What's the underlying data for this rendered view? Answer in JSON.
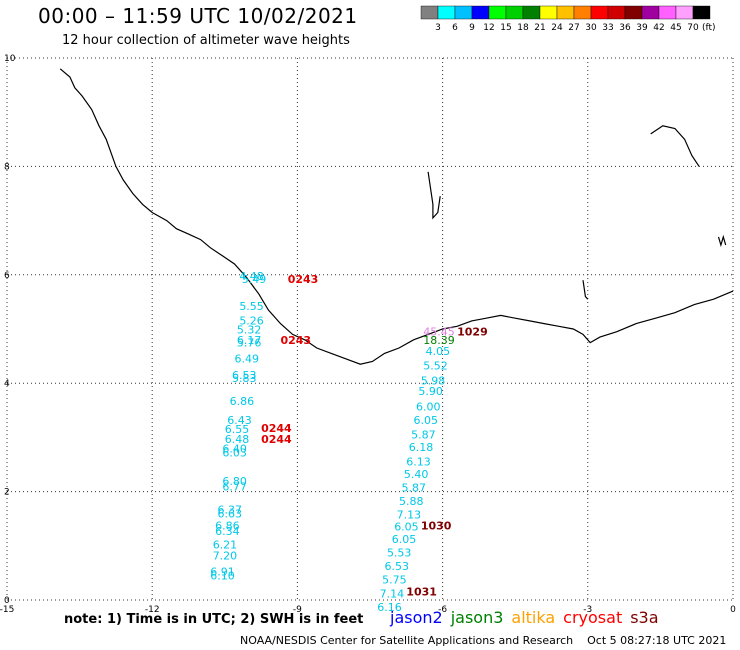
{
  "header": {
    "title": "00:00 – 11:59 UTC 10/02/2021",
    "subtitle": "12 hour collection of altimeter wave heights"
  },
  "color_scale": {
    "labels": [
      "3",
      "6",
      "9",
      "12",
      "15",
      "18",
      "21",
      "24",
      "27",
      "30",
      "33",
      "36",
      "39",
      "42",
      "45",
      "70"
    ],
    "unit": "(ft)",
    "colors": [
      "#808080",
      "#00ffff",
      "#00c0ff",
      "#0000ff",
      "#00ff00",
      "#00d000",
      "#008000",
      "#ffff00",
      "#ffc000",
      "#ff8000",
      "#ff0000",
      "#d00000",
      "#800000",
      "#a000a0",
      "#ff60ff",
      "#ffa0ff",
      "#000000"
    ]
  },
  "footer": {
    "note": "note: 1) Time is in UTC; 2) SWH is in feet",
    "satellites": [
      {
        "name": "jason2",
        "color": "#0000ff"
      },
      {
        "name": "jason3",
        "color": "#008000"
      },
      {
        "name": "altika",
        "color": "#ffa000"
      },
      {
        "name": "cryosat",
        "color": "#ff0000"
      },
      {
        "name": "s3a",
        "color": "#800000"
      }
    ],
    "credit": "NOAA/NESDIS Center for Satellite Applications and Research",
    "timestamp": "Oct  5 08:27:18 UTC 2021"
  },
  "chart_data": {
    "type": "scatter",
    "xlim": [
      -15,
      0
    ],
    "ylim": [
      0,
      10
    ],
    "x_ticks": [
      -15,
      -12,
      -9,
      -6,
      -3,
      0
    ],
    "x_tick_labels": [
      "-15",
      "-12",
      "-9",
      "-6",
      "-3",
      "0"
    ],
    "y_ticks": [
      0,
      2,
      4,
      6,
      8,
      10
    ],
    "y_tick_labels": [
      "0",
      "2",
      "4",
      "6",
      "8",
      "10"
    ],
    "grid": true,
    "coastline": [
      [
        -13.9,
        9.8
      ],
      [
        -13.7,
        9.65
      ],
      [
        -13.6,
        9.45
      ],
      [
        -13.45,
        9.3
      ],
      [
        -13.25,
        9.05
      ],
      [
        -13.1,
        8.75
      ],
      [
        -12.95,
        8.5
      ],
      [
        -12.85,
        8.25
      ],
      [
        -12.75,
        8.0
      ],
      [
        -12.6,
        7.75
      ],
      [
        -12.4,
        7.5
      ],
      [
        -12.2,
        7.3
      ],
      [
        -12.0,
        7.15
      ],
      [
        -11.7,
        7.0
      ],
      [
        -11.5,
        6.85
      ],
      [
        -11.25,
        6.75
      ],
      [
        -11.0,
        6.65
      ],
      [
        -10.8,
        6.5
      ],
      [
        -10.55,
        6.35
      ],
      [
        -10.3,
        6.2
      ],
      [
        -10.05,
        5.95
      ],
      [
        -9.8,
        5.65
      ],
      [
        -9.6,
        5.35
      ],
      [
        -9.35,
        5.1
      ],
      [
        -9.1,
        4.9
      ],
      [
        -8.85,
        4.8
      ],
      [
        -8.6,
        4.65
      ],
      [
        -8.3,
        4.55
      ],
      [
        -8.0,
        4.45
      ],
      [
        -7.7,
        4.35
      ],
      [
        -7.45,
        4.4
      ],
      [
        -7.2,
        4.55
      ],
      [
        -6.9,
        4.65
      ],
      [
        -6.6,
        4.8
      ],
      [
        -6.3,
        4.9
      ],
      [
        -6.0,
        5.0
      ],
      [
        -5.7,
        5.05
      ],
      [
        -5.4,
        5.15
      ],
      [
        -5.1,
        5.2
      ],
      [
        -4.8,
        5.25
      ],
      [
        -4.5,
        5.2
      ],
      [
        -4.2,
        5.15
      ],
      [
        -3.9,
        5.1
      ],
      [
        -3.6,
        5.05
      ],
      [
        -3.3,
        5.0
      ],
      [
        -3.1,
        4.9
      ],
      [
        -2.95,
        4.75
      ],
      [
        -2.75,
        4.85
      ],
      [
        -2.4,
        4.95
      ],
      [
        -2.0,
        5.1
      ],
      [
        -1.6,
        5.2
      ],
      [
        -1.2,
        5.3
      ],
      [
        -0.8,
        5.45
      ],
      [
        -0.4,
        5.55
      ],
      [
        0.0,
        5.7
      ]
    ],
    "land_fragments": [
      [
        [
          -6.3,
          7.9
        ],
        [
          -6.25,
          7.6
        ],
        [
          -6.2,
          7.3
        ],
        [
          -6.2,
          7.05
        ],
        [
          -6.1,
          7.15
        ],
        [
          -6.05,
          7.45
        ]
      ],
      [
        [
          -1.7,
          8.6
        ],
        [
          -1.45,
          8.75
        ],
        [
          -1.2,
          8.7
        ],
        [
          -1.0,
          8.5
        ],
        [
          -0.85,
          8.2
        ],
        [
          -0.7,
          8.0
        ]
      ],
      [
        [
          -0.3,
          6.7
        ],
        [
          -0.25,
          6.55
        ],
        [
          -0.2,
          6.7
        ],
        [
          -0.15,
          6.55
        ]
      ],
      [
        [
          -3.1,
          5.9
        ],
        [
          -3.05,
          5.6
        ],
        [
          -3.0,
          5.55
        ]
      ]
    ],
    "series": [
      {
        "name": "jason2",
        "color": "#00c8e8",
        "points": [
          {
            "x": -10.2,
            "y": 5.9,
            "label": "4.48"
          },
          {
            "x": -10.15,
            "y": 5.85,
            "label": "5.49"
          },
          {
            "x": -10.2,
            "y": 5.35,
            "label": "5.55"
          },
          {
            "x": -10.2,
            "y": 5.08,
            "label": "5.26"
          },
          {
            "x": -10.25,
            "y": 4.92,
            "label": "5.32"
          },
          {
            "x": -10.25,
            "y": 4.72,
            "label": "6.17"
          },
          {
            "x": -10.25,
            "y": 4.68,
            "label": "5.76"
          },
          {
            "x": -10.3,
            "y": 4.38,
            "label": "6.49"
          },
          {
            "x": -10.35,
            "y": 4.08,
            "label": "6.53"
          },
          {
            "x": -10.35,
            "y": 4.02,
            "label": "5.83"
          },
          {
            "x": -10.4,
            "y": 3.6,
            "label": "6.86"
          },
          {
            "x": -10.45,
            "y": 3.25,
            "label": "6.43"
          },
          {
            "x": -10.5,
            "y": 3.08,
            "label": "6.55"
          },
          {
            "x": -10.5,
            "y": 2.9,
            "label": "6.48"
          },
          {
            "x": -10.55,
            "y": 2.72,
            "label": "6.40"
          },
          {
            "x": -10.55,
            "y": 2.65,
            "label": "6.03"
          },
          {
            "x": -10.55,
            "y": 2.12,
            "label": "6.80"
          },
          {
            "x": -10.55,
            "y": 2.02,
            "label": "6.77"
          },
          {
            "x": -10.65,
            "y": 1.6,
            "label": "6.37"
          },
          {
            "x": -10.65,
            "y": 1.52,
            "label": "6.63"
          },
          {
            "x": -10.7,
            "y": 1.3,
            "label": "6.86"
          },
          {
            "x": -10.7,
            "y": 1.2,
            "label": "6.34"
          },
          {
            "x": -10.75,
            "y": 0.95,
            "label": "6.21"
          },
          {
            "x": -10.75,
            "y": 0.75,
            "label": "7.20"
          },
          {
            "x": -10.8,
            "y": 0.45,
            "label": "6.91"
          },
          {
            "x": -10.8,
            "y": 0.38,
            "label": "6.10"
          },
          {
            "x": -6.35,
            "y": 4.52,
            "label": "4.05"
          },
          {
            "x": -6.4,
            "y": 4.25,
            "label": "5.52"
          },
          {
            "x": -6.45,
            "y": 3.98,
            "label": "5.98"
          },
          {
            "x": -6.5,
            "y": 3.78,
            "label": "5.90"
          },
          {
            "x": -6.55,
            "y": 3.5,
            "label": "6.00"
          },
          {
            "x": -6.6,
            "y": 3.25,
            "label": "6.05"
          },
          {
            "x": -6.65,
            "y": 2.98,
            "label": "5.87"
          },
          {
            "x": -6.7,
            "y": 2.75,
            "label": "6.18"
          },
          {
            "x": -6.75,
            "y": 2.48,
            "label": "6.13"
          },
          {
            "x": -6.8,
            "y": 2.25,
            "label": "5.40"
          },
          {
            "x": -6.85,
            "y": 2.0,
            "label": "5.87"
          },
          {
            "x": -6.9,
            "y": 1.75,
            "label": "5.88"
          },
          {
            "x": -6.95,
            "y": 1.5,
            "label": "7.13"
          },
          {
            "x": -7.0,
            "y": 1.28,
            "label": "6.05"
          },
          {
            "x": -7.05,
            "y": 1.05,
            "label": "6.05"
          },
          {
            "x": -7.15,
            "y": 0.8,
            "label": "5.53"
          },
          {
            "x": -7.2,
            "y": 0.55,
            "label": "6.53"
          },
          {
            "x": -7.25,
            "y": 0.3,
            "label": "5.75"
          },
          {
            "x": -7.3,
            "y": 0.05,
            "label": "7.14"
          },
          {
            "x": -7.35,
            "y": -0.2,
            "label": "6.16"
          }
        ]
      },
      {
        "name": "jason3",
        "color": "#008000",
        "points": [
          {
            "x": -6.4,
            "y": 4.72,
            "label": "18.39"
          }
        ]
      },
      {
        "name": "altika",
        "color": "#e080e0",
        "points": [
          {
            "x": -6.4,
            "y": 4.88,
            "label": "45.45"
          }
        ]
      },
      {
        "name": "cryosat",
        "color": "#e00000",
        "points": [
          {
            "x": -9.2,
            "y": 5.85,
            "label": "0243"
          },
          {
            "x": -9.35,
            "y": 4.72,
            "label": "0243"
          },
          {
            "x": -9.75,
            "y": 3.1,
            "label": "0244"
          },
          {
            "x": -9.75,
            "y": 2.9,
            "label": "0244"
          }
        ]
      },
      {
        "name": "s3a",
        "color": "#800000",
        "points": [
          {
            "x": -5.7,
            "y": 4.88,
            "label": "1029"
          },
          {
            "x": -6.45,
            "y": 1.3,
            "label": "1030"
          },
          {
            "x": -6.75,
            "y": 0.08,
            "label": "1031"
          }
        ]
      }
    ]
  }
}
